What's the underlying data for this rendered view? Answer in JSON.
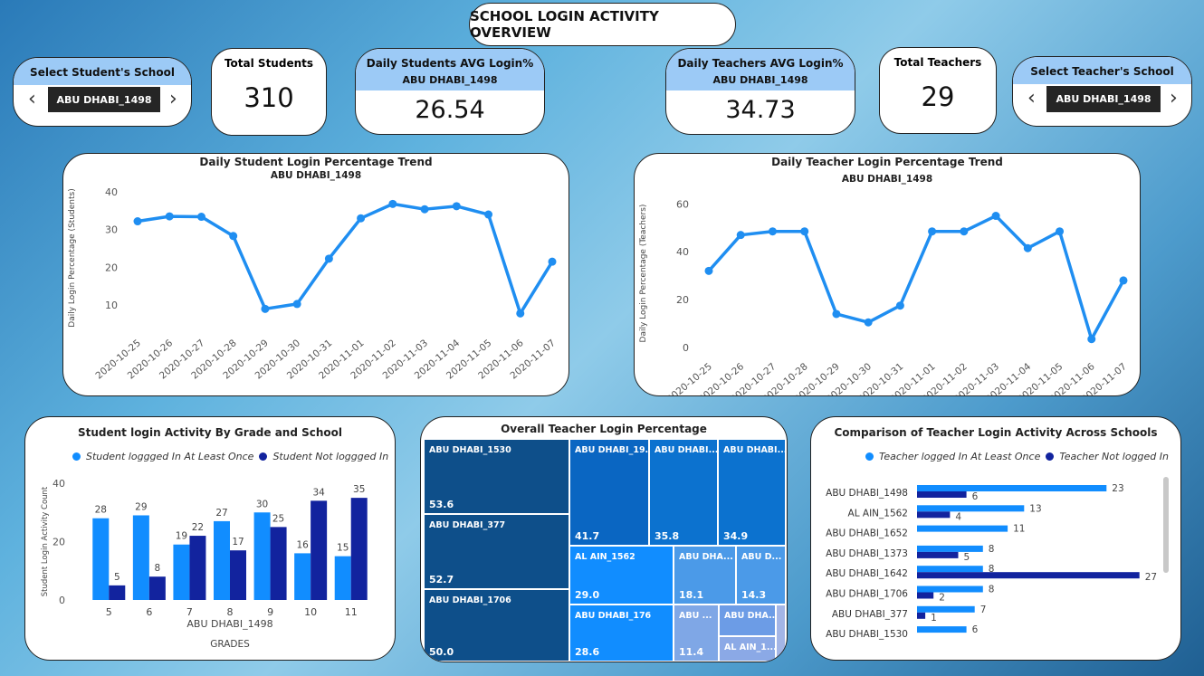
{
  "title": "SCHOOL LOGIN ACTIVITY OVERVIEW",
  "student_slicer": {
    "label": "Select Student's School",
    "value": "ABU DHABI_1498"
  },
  "teacher_slicer": {
    "label": "Select Teacher's School",
    "value": "ABU DHABI_1498"
  },
  "total_students": {
    "label": "Total Students",
    "value": "310"
  },
  "total_teachers": {
    "label": "Total Teachers",
    "value": "29"
  },
  "students_avg": {
    "label": "Daily Students AVG Login%",
    "school": "ABU DHABI_1498",
    "value": "26.54"
  },
  "teachers_avg": {
    "label": "Daily Teachers AVG Login%",
    "school": "ABU DHABI_1498",
    "value": "34.73"
  },
  "student_trend": {
    "title": "Daily Student Login Percentage Trend",
    "subtitle": "ABU DHABI_1498"
  },
  "teacher_trend": {
    "title": "Daily Teacher Login Percentage Trend",
    "subtitle": "ABU DHABI_1498"
  },
  "grade_chart": {
    "title": "Student login Activity By Grade and School",
    "legend_a": "Student loggged In At Least Once",
    "legend_b": "Student Not loggged In"
  },
  "treemap": {
    "title": "Overall Teacher Login Percentage"
  },
  "compare": {
    "title": "Comparison of Teacher Login Activity Across Schools",
    "legend_a": "Teacher logged In At Least Once",
    "legend_b": "Teacher Not logged In"
  },
  "colors": {
    "light": "#118dff",
    "dark": "#12239e",
    "line": "#1f8ef1"
  },
  "chart_data": [
    {
      "type": "line",
      "title": "Daily Student Login Percentage Trend",
      "subtitle": "ABU DHABI_1498",
      "ylabel": "Daily Login Percentage (Students)",
      "ylim": [
        5,
        40
      ],
      "yticks": [
        10,
        20,
        30,
        40
      ],
      "x": [
        "2020-10-25",
        "2020-10-26",
        "2020-10-27",
        "2020-10-28",
        "2020-10-29",
        "2020-10-30",
        "2020-10-31",
        "2020-11-01",
        "2020-11-02",
        "2020-11-03",
        "2020-11-04",
        "2020-11-05",
        "2020-11-06",
        "2020-11-07"
      ],
      "values": [
        32.2,
        33.5,
        33.4,
        28.3,
        9.0,
        10.3,
        22.3,
        33.0,
        36.8,
        35.4,
        36.2,
        34.0,
        7.8,
        21.5
      ]
    },
    {
      "type": "line",
      "title": "Daily Teacher Login Percentage Trend",
      "subtitle": "ABU DHABI_1498",
      "ylabel": "Daily Login Percentage (Teachers)",
      "ylim": [
        0,
        62
      ],
      "yticks": [
        0,
        20,
        40,
        60
      ],
      "x": [
        "2020-10-25",
        "2020-10-26",
        "2020-10-27",
        "2020-10-28",
        "2020-10-29",
        "2020-10-30",
        "2020-10-31",
        "2020-11-01",
        "2020-11-02",
        "2020-11-03",
        "2020-11-04",
        "2020-11-05",
        "2020-11-06",
        "2020-11-07"
      ],
      "values": [
        32,
        47,
        48.5,
        48.5,
        14,
        10.5,
        17.5,
        48.5,
        48.5,
        55,
        41.5,
        48.5,
        3.5,
        28
      ]
    },
    {
      "type": "bar",
      "title": "Student login Activity By Grade and School",
      "xlabel": "GRADES",
      "xsub": "ABU DHABI_1498",
      "ylabel": "Student Login Activity Count",
      "ylim": [
        0,
        40
      ],
      "yticks": [
        0,
        20,
        40
      ],
      "categories": [
        "5",
        "6",
        "7",
        "8",
        "9",
        "10",
        "11"
      ],
      "series": [
        {
          "name": "Student loggged In At Least Once",
          "values": [
            28,
            29,
            19,
            27,
            30,
            16,
            15
          ]
        },
        {
          "name": "Student Not loggged In",
          "values": [
            5,
            8,
            22,
            17,
            25,
            34,
            35
          ]
        }
      ]
    },
    {
      "type": "treemap",
      "title": "Overall Teacher Login Percentage",
      "items": [
        {
          "label": "ABU DHABI_1530",
          "value": "53.6"
        },
        {
          "label": "ABU DHABI_377",
          "value": "52.7"
        },
        {
          "label": "ABU DHABI_1706",
          "value": "50.0"
        },
        {
          "label": "ABU DHABI_19...",
          "value": "41.7"
        },
        {
          "label": "ABU DHABI...",
          "value": "35.8"
        },
        {
          "label": "ABU DHABI...",
          "value": "34.9"
        },
        {
          "label": "AL AIN_1562",
          "value": "29.0"
        },
        {
          "label": "ABU DHA...",
          "value": "18.1"
        },
        {
          "label": "ABU D...",
          "value": "14.3"
        },
        {
          "label": "ABU DHABI_176",
          "value": "28.6"
        },
        {
          "label": "ABU ...",
          "value": "11.4"
        },
        {
          "label": "ABU DHA...",
          "value": ""
        },
        {
          "label": "AL AIN_1...",
          "value": ""
        }
      ]
    },
    {
      "type": "bar",
      "orientation": "horizontal",
      "title": "Comparison of Teacher Login Activity Across Schools",
      "categories": [
        "ABU DHABI_1498",
        "AL AIN_1562",
        "ABU DHABI_1652",
        "ABU DHABI_1373",
        "ABU DHABI_1642",
        "ABU DHABI_1706",
        "ABU DHABI_377",
        "ABU DHABI_1530"
      ],
      "series": [
        {
          "name": "Teacher logged In At Least Once",
          "values": [
            23,
            13,
            11,
            8,
            8,
            8,
            7,
            6
          ]
        },
        {
          "name": "Teacher Not logged In",
          "values": [
            6,
            4,
            null,
            5,
            27,
            2,
            1,
            null
          ]
        }
      ]
    }
  ]
}
